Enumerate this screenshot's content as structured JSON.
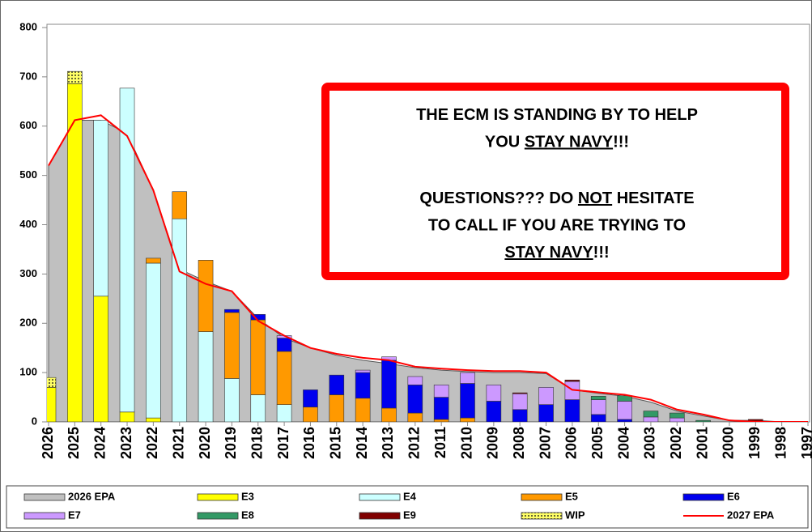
{
  "chart_data": {
    "type": "bar",
    "categories": [
      "2026",
      "2025",
      "2024",
      "2023",
      "2022",
      "2021",
      "2020",
      "2019",
      "2018",
      "2017",
      "2016",
      "2015",
      "2014",
      "2013",
      "2012",
      "2011",
      "2010",
      "2009",
      "2008",
      "2007",
      "2006",
      "2005",
      "2004",
      "2003",
      "2002",
      "2001",
      "2000",
      "1999",
      "1998",
      "1997"
    ],
    "ylim": [
      0,
      800
    ],
    "yticks": [
      0,
      100,
      200,
      300,
      400,
      500,
      600,
      700,
      800
    ],
    "series": [
      {
        "name": "2026 EPA",
        "type": "area",
        "color": "#c0c0c0",
        "values": [
          520,
          612,
          612,
          585,
          470,
          310,
          285,
          265,
          210,
          170,
          150,
          135,
          125,
          118,
          110,
          105,
          102,
          100,
          100,
          98,
          65,
          58,
          52,
          40,
          22,
          12,
          3,
          3,
          0,
          0
        ]
      },
      {
        "name": "E3",
        "type": "bar",
        "color": "#ffff00",
        "values": [
          70,
          686,
          255,
          20,
          8,
          0,
          0,
          0,
          0,
          0,
          0,
          0,
          0,
          0,
          0,
          0,
          0,
          0,
          0,
          0,
          0,
          0,
          0,
          0,
          0,
          0,
          0,
          0,
          0,
          0
        ]
      },
      {
        "name": "E4",
        "type": "bar",
        "color": "#ccffff",
        "values": [
          0,
          0,
          357,
          657,
          314,
          412,
          183,
          88,
          55,
          35,
          0,
          0,
          0,
          0,
          0,
          0,
          0,
          0,
          0,
          0,
          0,
          0,
          0,
          0,
          0,
          0,
          0,
          0,
          0,
          0
        ]
      },
      {
        "name": "E5",
        "type": "bar",
        "color": "#ff9900",
        "values": [
          0,
          0,
          0,
          0,
          10,
          55,
          145,
          134,
          152,
          108,
          30,
          55,
          48,
          28,
          18,
          5,
          8,
          0,
          0,
          0,
          0,
          0,
          0,
          0,
          0,
          0,
          0,
          0,
          0,
          0
        ]
      },
      {
        "name": "E6",
        "type": "bar",
        "color": "#0000ee",
        "values": [
          0,
          0,
          0,
          0,
          0,
          0,
          0,
          6,
          11,
          27,
          35,
          40,
          52,
          97,
          57,
          45,
          70,
          42,
          25,
          35,
          45,
          15,
          5,
          0,
          0,
          0,
          0,
          0,
          0,
          0
        ]
      },
      {
        "name": "E7",
        "type": "bar",
        "color": "#cc99ff",
        "values": [
          0,
          0,
          0,
          0,
          0,
          0,
          0,
          0,
          0,
          5,
          0,
          0,
          5,
          7,
          17,
          25,
          22,
          33,
          32,
          35,
          37,
          30,
          37,
          10,
          8,
          0,
          0,
          0,
          0,
          0
        ]
      },
      {
        "name": "E8",
        "type": "bar",
        "color": "#339966",
        "values": [
          0,
          0,
          0,
          0,
          0,
          0,
          0,
          0,
          0,
          0,
          0,
          0,
          0,
          0,
          0,
          0,
          0,
          0,
          0,
          0,
          0,
          7,
          11,
          12,
          10,
          3,
          0,
          0,
          0,
          0
        ]
      },
      {
        "name": "E9",
        "type": "bar",
        "color": "#800000",
        "values": [
          0,
          0,
          0,
          0,
          0,
          0,
          0,
          0,
          0,
          0,
          0,
          0,
          0,
          0,
          0,
          0,
          0,
          0,
          2,
          0,
          3,
          0,
          0,
          0,
          0,
          0,
          0,
          5,
          0,
          0
        ]
      },
      {
        "name": "WIP",
        "type": "bar",
        "color": "#a8a840",
        "values": [
          20,
          25,
          0,
          0,
          0,
          0,
          0,
          0,
          0,
          0,
          0,
          0,
          0,
          0,
          0,
          0,
          0,
          0,
          0,
          0,
          0,
          0,
          0,
          0,
          0,
          0,
          0,
          0,
          0,
          0
        ]
      },
      {
        "name": "2027 EPA",
        "type": "line",
        "color": "#ff0000",
        "values": [
          520,
          612,
          622,
          580,
          470,
          305,
          280,
          265,
          205,
          175,
          150,
          138,
          130,
          125,
          112,
          108,
          105,
          103,
          103,
          100,
          65,
          60,
          55,
          45,
          25,
          15,
          3,
          0,
          0,
          0
        ]
      }
    ],
    "annotation": {
      "color": "#ff0000",
      "paragraphs": [
        [
          [
            {
              "text": "THE ECM IS STANDING BY TO HELP"
            }
          ],
          [
            {
              "text": "YOU "
            },
            {
              "text": "STAY NAVY",
              "underline": true
            },
            {
              "text": "!!!"
            }
          ]
        ],
        [
          [
            {
              "text": "QUESTIONS???  DO "
            },
            {
              "text": "NOT",
              "underline": true
            },
            {
              "text": " HESITATE"
            }
          ],
          [
            {
              "text": "TO CALL IF YOU ARE TRYING TO"
            }
          ],
          [
            {
              "text": "STAY NAVY",
              "underline": true
            },
            {
              "text": "!!!"
            }
          ]
        ]
      ]
    }
  }
}
